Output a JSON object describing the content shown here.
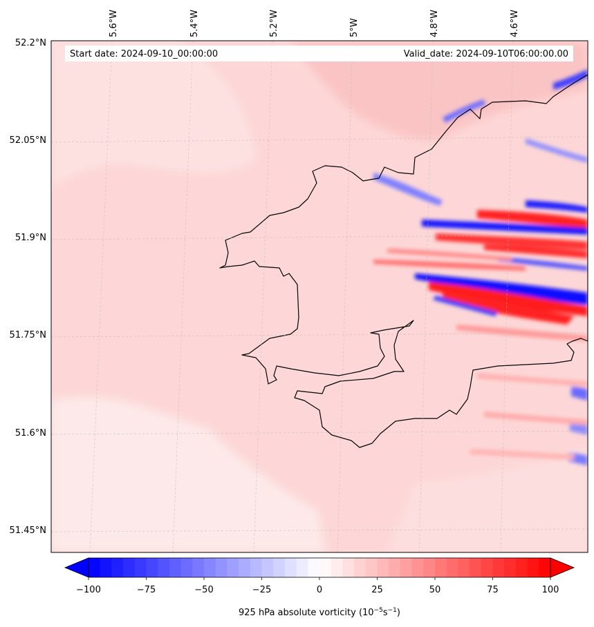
{
  "header": {
    "start_date": "Start date: 2024-09-10_00:00:00",
    "valid_date": "Valid_date: 2024-09-10T06:00:00.00"
  },
  "map": {
    "lon_labels": [
      "5.6°W",
      "5.4°W",
      "5.2°W",
      "5°W",
      "4.8°W",
      "4.6°W"
    ],
    "lat_labels": [
      "52.2°N",
      "52.05°N",
      "51.9°N",
      "51.75°N",
      "51.6°N",
      "51.45°N"
    ],
    "field": "925 hPa absolute vorticity",
    "land_color": "#ffffff",
    "coastline_color": "#000000",
    "gridlines": true
  },
  "colorbar": {
    "ticks": [
      "−100",
      "−75",
      "−50",
      "−25",
      "0",
      "25",
      "50",
      "75",
      "100"
    ],
    "label_main": "925 hPa absolute vorticity (10",
    "label_exp1": "−5",
    "label_mid": "s",
    "label_exp2": "−1",
    "label_end": ")",
    "min": -100,
    "max": 100,
    "step": 5,
    "extend": "both",
    "cmap": "bwr",
    "color_low": "#0000ff",
    "color_mid": "#ffffff",
    "color_high": "#ff0000"
  }
}
